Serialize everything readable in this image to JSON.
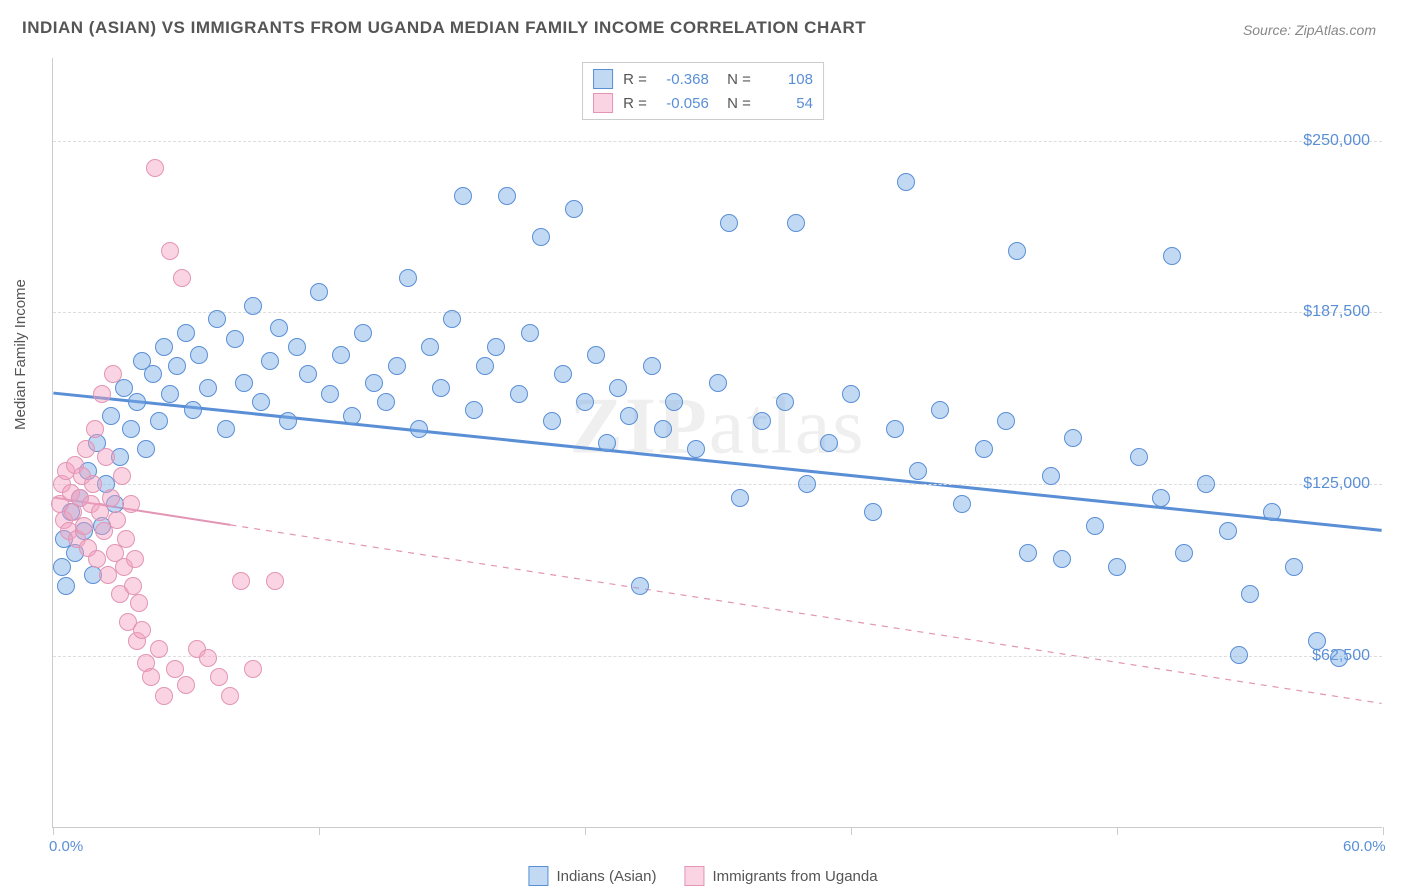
{
  "title": "INDIAN (ASIAN) VS IMMIGRANTS FROM UGANDA MEDIAN FAMILY INCOME CORRELATION CHART",
  "source": "Source: ZipAtlas.com",
  "watermark": "ZIPatlas",
  "chart": {
    "type": "scatter",
    "background_color": "#ffffff",
    "grid_color": "#dddddd",
    "axis_color": "#cccccc",
    "ylabel": "Median Family Income",
    "ylabel_fontsize": 15,
    "ylabel_color": "#555555",
    "xlim": [
      0,
      60
    ],
    "ylim": [
      0,
      280000
    ],
    "xticks": [
      0,
      12,
      24,
      36,
      48,
      60
    ],
    "xaxis_labels": [
      {
        "x": 0,
        "text": "0.0%"
      },
      {
        "x": 60,
        "text": "60.0%"
      }
    ],
    "yticks": [
      {
        "y": 62500,
        "label": "$62,500"
      },
      {
        "y": 125000,
        "label": "$125,000"
      },
      {
        "y": 187500,
        "label": "$187,500"
      },
      {
        "y": 250000,
        "label": "$250,000"
      }
    ],
    "ytick_color": "#5a8fd6",
    "ytick_fontsize": 16,
    "series": [
      {
        "name": "Indians (Asian)",
        "fill": "rgba(120,170,230,0.45)",
        "stroke": "#5a8fd6",
        "marker_radius": 9,
        "trend": {
          "x1": 0,
          "y1": 158000,
          "x2": 60,
          "y2": 108000,
          "width": 3,
          "solid_until_x": 60
        },
        "R": "-0.368",
        "N": "108",
        "points": [
          [
            0.4,
            95000
          ],
          [
            0.5,
            105000
          ],
          [
            0.6,
            88000
          ],
          [
            0.8,
            115000
          ],
          [
            1.0,
            100000
          ],
          [
            1.2,
            120000
          ],
          [
            1.4,
            108000
          ],
          [
            1.6,
            130000
          ],
          [
            1.8,
            92000
          ],
          [
            2.0,
            140000
          ],
          [
            2.2,
            110000
          ],
          [
            2.4,
            125000
          ],
          [
            2.6,
            150000
          ],
          [
            2.8,
            118000
          ],
          [
            3.0,
            135000
          ],
          [
            3.2,
            160000
          ],
          [
            3.5,
            145000
          ],
          [
            3.8,
            155000
          ],
          [
            4.0,
            170000
          ],
          [
            4.2,
            138000
          ],
          [
            4.5,
            165000
          ],
          [
            4.8,
            148000
          ],
          [
            5.0,
            175000
          ],
          [
            5.3,
            158000
          ],
          [
            5.6,
            168000
          ],
          [
            6.0,
            180000
          ],
          [
            6.3,
            152000
          ],
          [
            6.6,
            172000
          ],
          [
            7.0,
            160000
          ],
          [
            7.4,
            185000
          ],
          [
            7.8,
            145000
          ],
          [
            8.2,
            178000
          ],
          [
            8.6,
            162000
          ],
          [
            9.0,
            190000
          ],
          [
            9.4,
            155000
          ],
          [
            9.8,
            170000
          ],
          [
            10.2,
            182000
          ],
          [
            10.6,
            148000
          ],
          [
            11.0,
            175000
          ],
          [
            11.5,
            165000
          ],
          [
            12.0,
            195000
          ],
          [
            12.5,
            158000
          ],
          [
            13.0,
            172000
          ],
          [
            13.5,
            150000
          ],
          [
            14.0,
            180000
          ],
          [
            14.5,
            162000
          ],
          [
            15.0,
            155000
          ],
          [
            15.5,
            168000
          ],
          [
            16.0,
            200000
          ],
          [
            16.5,
            145000
          ],
          [
            17.0,
            175000
          ],
          [
            17.5,
            160000
          ],
          [
            18.0,
            185000
          ],
          [
            18.5,
            230000
          ],
          [
            19.0,
            152000
          ],
          [
            19.5,
            168000
          ],
          [
            20.0,
            175000
          ],
          [
            20.5,
            230000
          ],
          [
            21.0,
            158000
          ],
          [
            21.5,
            180000
          ],
          [
            22.0,
            215000
          ],
          [
            22.5,
            148000
          ],
          [
            23.0,
            165000
          ],
          [
            23.5,
            225000
          ],
          [
            24.0,
            155000
          ],
          [
            24.5,
            172000
          ],
          [
            25.0,
            140000
          ],
          [
            25.5,
            160000
          ],
          [
            26.0,
            150000
          ],
          [
            26.5,
            88000
          ],
          [
            27.0,
            168000
          ],
          [
            27.5,
            145000
          ],
          [
            28.0,
            155000
          ],
          [
            29.0,
            138000
          ],
          [
            30.0,
            162000
          ],
          [
            30.5,
            220000
          ],
          [
            31.0,
            120000
          ],
          [
            32.0,
            148000
          ],
          [
            33.0,
            155000
          ],
          [
            33.5,
            220000
          ],
          [
            34.0,
            125000
          ],
          [
            35.0,
            140000
          ],
          [
            36.0,
            158000
          ],
          [
            37.0,
            115000
          ],
          [
            38.0,
            145000
          ],
          [
            38.5,
            235000
          ],
          [
            39.0,
            130000
          ],
          [
            40.0,
            152000
          ],
          [
            41.0,
            118000
          ],
          [
            42.0,
            138000
          ],
          [
            43.0,
            148000
          ],
          [
            43.5,
            210000
          ],
          [
            44.0,
            100000
          ],
          [
            45.0,
            128000
          ],
          [
            46.0,
            142000
          ],
          [
            47.0,
            110000
          ],
          [
            48.0,
            95000
          ],
          [
            49.0,
            135000
          ],
          [
            50.0,
            120000
          ],
          [
            50.5,
            208000
          ],
          [
            51.0,
            100000
          ],
          [
            52.0,
            125000
          ],
          [
            53.0,
            108000
          ],
          [
            54.0,
            85000
          ],
          [
            55.0,
            115000
          ],
          [
            56.0,
            95000
          ],
          [
            57.0,
            68000
          ],
          [
            58.0,
            62000
          ],
          [
            53.5,
            63000
          ],
          [
            45.5,
            98000
          ]
        ]
      },
      {
        "name": "Immigrants from Uganda",
        "fill": "rgba(245,160,190,0.45)",
        "stroke": "#e295b4",
        "marker_radius": 9,
        "trend": {
          "x1": 0,
          "y1": 120000,
          "x2": 60,
          "y2": 45000,
          "width": 2,
          "solid_until_x": 8
        },
        "R": "-0.056",
        "N": "54",
        "points": [
          [
            0.3,
            118000
          ],
          [
            0.4,
            125000
          ],
          [
            0.5,
            112000
          ],
          [
            0.6,
            130000
          ],
          [
            0.7,
            108000
          ],
          [
            0.8,
            122000
          ],
          [
            0.9,
            115000
          ],
          [
            1.0,
            132000
          ],
          [
            1.1,
            105000
          ],
          [
            1.2,
            120000
          ],
          [
            1.3,
            128000
          ],
          [
            1.4,
            110000
          ],
          [
            1.5,
            138000
          ],
          [
            1.6,
            102000
          ],
          [
            1.7,
            118000
          ],
          [
            1.8,
            125000
          ],
          [
            1.9,
            145000
          ],
          [
            2.0,
            98000
          ],
          [
            2.1,
            115000
          ],
          [
            2.2,
            158000
          ],
          [
            2.3,
            108000
          ],
          [
            2.4,
            135000
          ],
          [
            2.5,
            92000
          ],
          [
            2.6,
            120000
          ],
          [
            2.7,
            165000
          ],
          [
            2.8,
            100000
          ],
          [
            2.9,
            112000
          ],
          [
            3.0,
            85000
          ],
          [
            3.1,
            128000
          ],
          [
            3.2,
            95000
          ],
          [
            3.3,
            105000
          ],
          [
            3.4,
            75000
          ],
          [
            3.5,
            118000
          ],
          [
            3.6,
            88000
          ],
          [
            3.7,
            98000
          ],
          [
            3.8,
            68000
          ],
          [
            3.9,
            82000
          ],
          [
            4.0,
            72000
          ],
          [
            4.2,
            60000
          ],
          [
            4.4,
            55000
          ],
          [
            4.6,
            240000
          ],
          [
            4.8,
            65000
          ],
          [
            5.0,
            48000
          ],
          [
            5.3,
            210000
          ],
          [
            5.5,
            58000
          ],
          [
            5.8,
            200000
          ],
          [
            6.0,
            52000
          ],
          [
            6.5,
            65000
          ],
          [
            7.0,
            62000
          ],
          [
            7.5,
            55000
          ],
          [
            8.0,
            48000
          ],
          [
            8.5,
            90000
          ],
          [
            9.0,
            58000
          ],
          [
            10.0,
            90000
          ]
        ]
      }
    ],
    "legend_top": {
      "border_color": "#cccccc"
    },
    "legend_bottom_labels": [
      "Indians (Asian)",
      "Immigrants from Uganda"
    ]
  }
}
